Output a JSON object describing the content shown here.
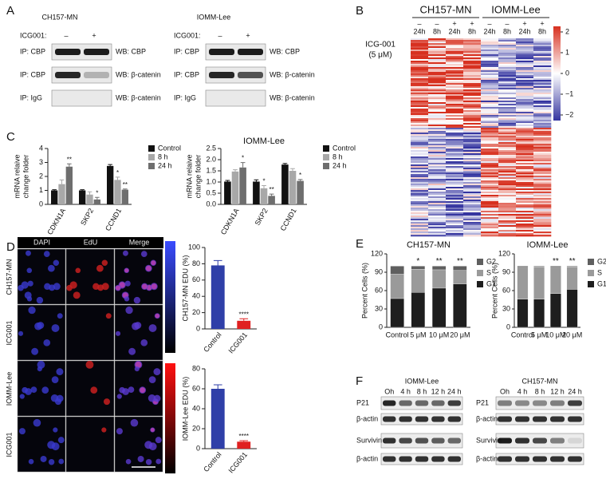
{
  "panel_labels": [
    "A",
    "B",
    "C",
    "D",
    "E",
    "F"
  ],
  "panel_a": {
    "blots": [
      {
        "title": "CH157-MN",
        "treatment_label": "ICG001:",
        "lanes": [
          "–",
          "+"
        ],
        "rows": [
          {
            "ip": "IP: CBP",
            "wb": "WB: CBP"
          },
          {
            "ip": "IP: CBP",
            "wb": "WB: β-catenin"
          },
          {
            "ip": "IP: IgG",
            "wb": "WB: β-catenin"
          }
        ]
      },
      {
        "title": "IOMM-Lee",
        "treatment_label": "ICG001:",
        "lanes": [
          "–",
          "+"
        ],
        "rows": [
          {
            "ip": "IP: CBP",
            "wb": "WB: CBP"
          },
          {
            "ip": "IP: CBP",
            "wb": "WB: β-catenin"
          },
          {
            "ip": "IP: IgG",
            "wb": "WB: β-catenin"
          }
        ]
      }
    ]
  },
  "panel_b": {
    "treatment_label": "ICG-001",
    "dose": "(5 μM)",
    "groups": [
      {
        "name": "CH157-MN",
        "columns": [
          {
            "treatment": "–",
            "time": "24h"
          },
          {
            "treatment": "–",
            "time": "8h"
          },
          {
            "treatment": "+",
            "time": "24h"
          },
          {
            "treatment": "+",
            "time": "8h"
          }
        ]
      },
      {
        "name": "IOMM-Lee",
        "columns": [
          {
            "treatment": "–",
            "time": "24h"
          },
          {
            "treatment": "–",
            "time": "8h"
          },
          {
            "treatment": "+",
            "time": "24h"
          },
          {
            "treatment": "+",
            "time": "8h"
          }
        ]
      }
    ],
    "colorbar_ticks": [
      2,
      1,
      0,
      {
        "value": -1,
        "label": "−1"
      },
      {
        "value": -2,
        "label": "−2"
      }
    ]
  },
  "panel_d": {
    "columns": [
      "DAPI",
      "EdU",
      "Merge"
    ],
    "rows": [
      "CH157-MN",
      "ICG001",
      "IOMM-Lee",
      "ICG001"
    ]
  },
  "panel_f": {
    "blots": [
      {
        "title": "IOMM-Lee",
        "lanes": [
          "Oh",
          "4 h",
          "8 h",
          "12 h",
          "24 h"
        ],
        "rows": [
          "P21",
          "β-actin",
          "Survivin",
          "β-actin"
        ]
      },
      {
        "title": "CH157-MN",
        "lanes": [
          "Oh",
          "4 h",
          "8 h",
          "12 h",
          "24 h"
        ],
        "rows": [
          "P21",
          "β-actin",
          "Survivin",
          "β-actin"
        ]
      }
    ]
  },
  "chart_data": [
    {
      "type": "bar",
      "ylabel": [
        "mRNA relaive",
        "change folder"
      ],
      "categories": [
        "CDKN1A",
        "SKP2",
        "CCND1"
      ],
      "series": [
        {
          "name": "Control",
          "color": "#111111",
          "values": [
            1.0,
            1.0,
            2.75
          ],
          "errors": [
            0.05,
            0.05,
            0.1
          ],
          "annotations": [
            null,
            null,
            null
          ]
        },
        {
          "name": "8 h",
          "color": "#a8a8a8",
          "values": [
            1.45,
            0.7,
            1.75
          ],
          "errors": [
            0.3,
            0.2,
            0.2
          ],
          "annotations": [
            null,
            null,
            "*"
          ]
        },
        {
          "name": "24 h",
          "color": "#6e6e6e",
          "values": [
            2.7,
            0.35,
            1.05
          ],
          "errors": [
            0.2,
            0.15,
            0.05
          ],
          "annotations": [
            "**",
            "*",
            "**"
          ]
        }
      ],
      "ylim": [
        0,
        4
      ],
      "yticks": [
        0,
        1,
        2,
        3,
        4
      ]
    },
    {
      "type": "bar",
      "title": "IOMM-Lee",
      "ylabel": [
        "mRNA relaive",
        "change folder"
      ],
      "categories": [
        "CDKN1A",
        "SKP2",
        "CCND1"
      ],
      "series": [
        {
          "name": "Control",
          "color": "#111111",
          "values": [
            1.02,
            1.02,
            1.78
          ],
          "errors": [
            0.05,
            0.08,
            0.05
          ],
          "annotations": [
            null,
            null,
            null
          ]
        },
        {
          "name": "8 h",
          "color": "#a8a8a8",
          "values": [
            1.47,
            0.72,
            1.5
          ],
          "errors": [
            0.08,
            0.12,
            0.1
          ],
          "annotations": [
            null,
            "*",
            null
          ]
        },
        {
          "name": "24 h",
          "color": "#6e6e6e",
          "values": [
            1.65,
            0.38,
            1.05
          ],
          "errors": [
            0.22,
            0.08,
            0.06
          ],
          "annotations": [
            "*",
            "**",
            "*"
          ]
        }
      ],
      "ylim": [
        0,
        2.5
      ],
      "yticks": [
        {
          "value": 0,
          "label": "0.0"
        },
        0.5,
        {
          "value": 1,
          "label": "1.0"
        },
        1.5,
        {
          "value": 2,
          "label": "2.0"
        },
        2.5
      ]
    },
    {
      "type": "bar",
      "ylabel": [
        "CH157-MN EDU (%)"
      ],
      "categories": [
        "Control",
        "ICG001"
      ],
      "series": [
        {
          "values": [
            78,
            10
          ],
          "errors": [
            6,
            2.5
          ],
          "colors": [
            "#2f3fa8",
            "#e02020"
          ],
          "annotations": [
            null,
            "****"
          ]
        }
      ],
      "ylim": [
        0,
        100
      ],
      "yticks": [
        0,
        20,
        40,
        60,
        80,
        100
      ]
    },
    {
      "type": "bar",
      "ylabel": [
        "IOMM-Lee EDU (%)"
      ],
      "categories": [
        "Control",
        "ICG001"
      ],
      "series": [
        {
          "values": [
            60,
            7
          ],
          "errors": [
            4,
            1
          ],
          "colors": [
            "#2f3fa8",
            "#e02020"
          ],
          "annotations": [
            null,
            "****"
          ]
        }
      ],
      "ylim": [
        0,
        80
      ],
      "yticks": [
        0,
        20,
        40,
        60,
        80
      ]
    },
    {
      "type": "stacked_bar",
      "title": "CH157-MN",
      "ylabel": [
        "Percent Cells (%)"
      ],
      "categories": [
        "Control",
        "5 μM",
        "10 μM",
        "20 μM"
      ],
      "series": [
        {
          "name": "G1",
          "color": "#1e1e1e",
          "values": [
            47,
            57,
            64,
            71
          ]
        },
        {
          "name": "S",
          "color": "#9a9a9a",
          "values": [
            40,
            38,
            30,
            22
          ]
        },
        {
          "name": "G2",
          "color": "#5f5f5f",
          "values": [
            13,
            5,
            6,
            7
          ]
        }
      ],
      "annotations": [
        null,
        "*",
        "**",
        "**"
      ],
      "ylim": [
        0,
        120
      ],
      "yticks": [
        0,
        30,
        60,
        90,
        120
      ]
    },
    {
      "type": "stacked_bar",
      "title": "IOMM-Lee",
      "ylabel": [
        "Percent Cells (%)"
      ],
      "categories": [
        "Control",
        "5 μM",
        "10 μM",
        "20 μM"
      ],
      "series": [
        {
          "name": "G1",
          "color": "#1e1e1e",
          "values": [
            46,
            46,
            55,
            62
          ]
        },
        {
          "name": "S",
          "color": "#9a9a9a",
          "values": [
            52,
            53,
            43,
            37
          ]
        },
        {
          "name": "G2",
          "color": "#5f5f5f",
          "values": [
            2,
            1,
            2,
            1
          ]
        }
      ],
      "annotations": [
        null,
        null,
        "**",
        "**"
      ],
      "ylim": [
        0,
        120
      ],
      "yticks": [
        0,
        30,
        60,
        90,
        120
      ]
    }
  ]
}
